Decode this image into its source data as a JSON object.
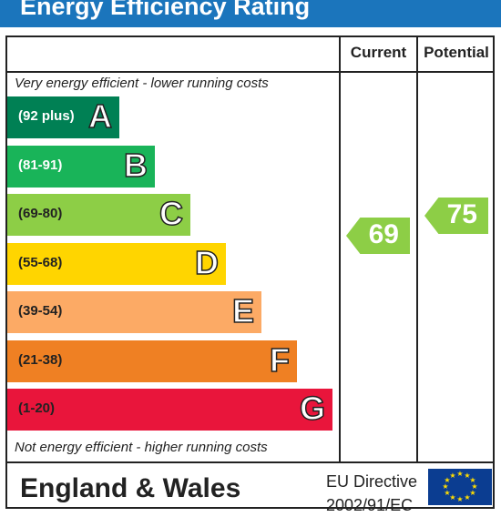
{
  "title": "Energy Efficiency Rating",
  "columns": {
    "current": "Current",
    "potential": "Potential"
  },
  "top_caption": "Very energy efficient - lower running costs",
  "bottom_caption": "Not energy efficient - higher running costs",
  "bands": [
    {
      "letter": "A",
      "range": "(92 plus)",
      "color": "#008054",
      "text_color": "#ffffff"
    },
    {
      "letter": "B",
      "range": "(81-91)",
      "color": "#19b459",
      "text_color": "#ffffff"
    },
    {
      "letter": "C",
      "range": "(69-80)",
      "color": "#8dce46",
      "text_color": "#222222"
    },
    {
      "letter": "D",
      "range": "(55-68)",
      "color": "#ffd500",
      "text_color": "#222222"
    },
    {
      "letter": "E",
      "range": "(39-54)",
      "color": "#fcaa65",
      "text_color": "#222222"
    },
    {
      "letter": "F",
      "range": "(21-38)",
      "color": "#ef8023",
      "text_color": "#222222"
    },
    {
      "letter": "G",
      "range": "(1-20)",
      "color": "#e9153b",
      "text_color": "#222222"
    }
  ],
  "ratings": {
    "current": {
      "value": "69",
      "band": "C",
      "color": "#8dce46"
    },
    "potential": {
      "value": "75",
      "band": "C",
      "color": "#8dce46"
    }
  },
  "footer": {
    "region": "England & Wales",
    "directive_line1": "EU Directive",
    "directive_line2": "2002/91/EC"
  },
  "icons": {
    "flag": "eu-flag-icon"
  }
}
